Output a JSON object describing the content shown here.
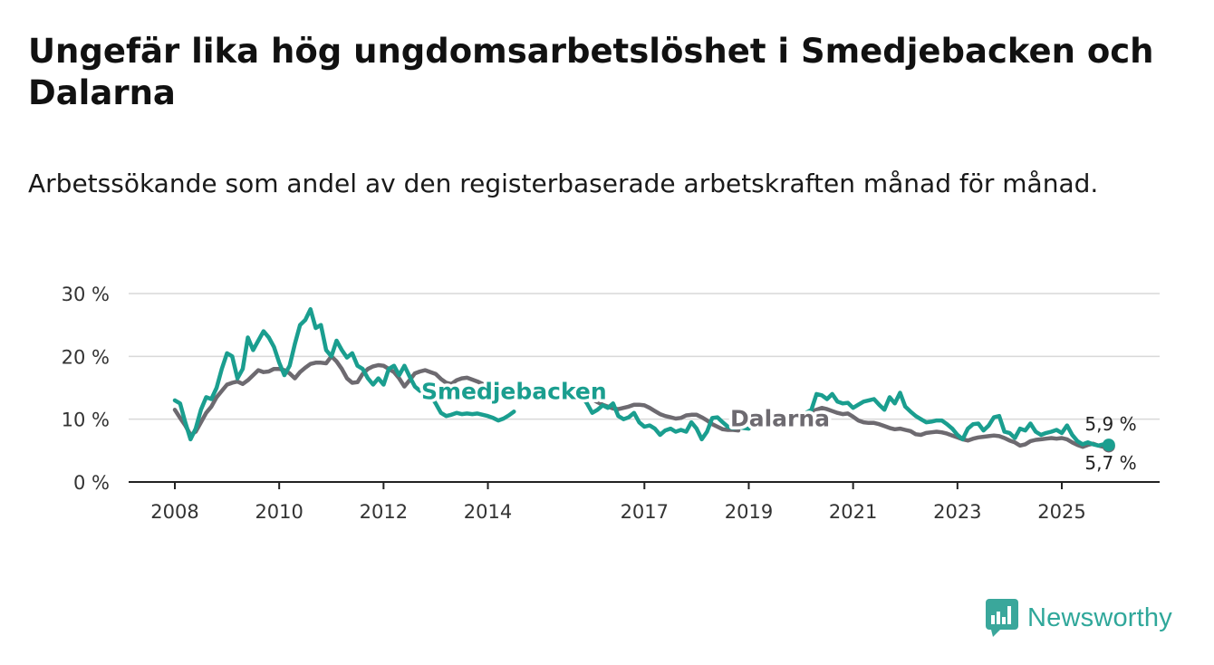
{
  "title": "Ungefär lika hög ungdomsarbetslöshet i Smedjebacken och Dalarna",
  "subtitle": "Arbetssökande som andel av den registerbaserade arbetskraften månad för månad.",
  "brand": {
    "name": "Newsworthy",
    "icon": "newsworthy-logo-icon",
    "color": "#2fa79a"
  },
  "chart_data": {
    "type": "line",
    "title": "Ungefär lika hög ungdomsarbetslöshet i Smedjebacken och Dalarna",
    "xlabel": "",
    "ylabel": "",
    "ylim": [
      0,
      30
    ],
    "xlim": [
      2008.0,
      2026.8
    ],
    "grid": true,
    "x_ticks": [
      2008,
      2010,
      2012,
      2014,
      2017,
      2019,
      2021,
      2023,
      2025
    ],
    "x_tick_labels": [
      "2008",
      "2010",
      "2012",
      "2014",
      "2017",
      "2019",
      "2021",
      "2023",
      "2025"
    ],
    "y_ticks": [
      0,
      10,
      20,
      30
    ],
    "y_tick_labels": [
      "0 %",
      "10 %",
      "20 %",
      "30 %"
    ],
    "series": [
      {
        "name": "Dalarna",
        "color": "#6d6a70",
        "last_value_label": "5,7 %",
        "segments": [
          {
            "x": [
              2008.0,
              2008.1,
              2008.2,
              2008.3,
              2008.4,
              2008.5,
              2008.6,
              2008.7,
              2008.8,
              2008.9,
              2009.0,
              2009.1,
              2009.2,
              2009.3,
              2009.4,
              2009.5,
              2009.6,
              2009.7,
              2009.8,
              2009.9,
              2010.0,
              2010.1,
              2010.2,
              2010.3,
              2010.4,
              2010.5,
              2010.6,
              2010.7,
              2010.8,
              2010.9,
              2011.0,
              2011.1,
              2011.2,
              2011.3,
              2011.4,
              2011.5,
              2011.6,
              2011.7,
              2011.8,
              2011.9,
              2012.0,
              2012.1,
              2012.2,
              2012.3,
              2012.4,
              2012.5,
              2012.6,
              2012.7,
              2012.8,
              2012.9,
              2013.0,
              2013.1,
              2013.2,
              2013.3,
              2013.4,
              2013.5,
              2013.6,
              2013.7,
              2013.8,
              2013.9,
              2014.0,
              2014.1
            ],
            "y": [
              11.5,
              10.2,
              9.0,
              7.5,
              8.0,
              9.5,
              11.0,
              12.0,
              13.5,
              14.5,
              15.5,
              15.8,
              16.0,
              15.6,
              16.2,
              17.0,
              17.8,
              17.5,
              17.6,
              18.0,
              18.0,
              17.8,
              17.3,
              16.5,
              17.5,
              18.2,
              18.8,
              19.0,
              19.0,
              18.9,
              20.0,
              19.2,
              18.0,
              16.5,
              15.8,
              15.9,
              17.2,
              18.0,
              18.4,
              18.6,
              18.5,
              18.0,
              17.5,
              16.5,
              15.2,
              16.2,
              17.3,
              17.6,
              17.8,
              17.5,
              17.2,
              16.4,
              15.8,
              15.6,
              16.2,
              16.5,
              16.6,
              16.3,
              16.0,
              15.6,
              15.2,
              14.9
            ]
          },
          {
            "x": [
              2015.6,
              2015.7,
              2015.8,
              2015.9,
              2016.0,
              2016.1,
              2016.2,
              2016.3,
              2016.4,
              2016.5,
              2016.6,
              2016.7,
              2016.8,
              2016.9,
              2017.0,
              2017.1,
              2017.2,
              2017.3,
              2017.4,
              2017.5,
              2017.6,
              2017.7,
              2017.8,
              2017.9,
              2018.0,
              2018.1,
              2018.2,
              2018.3,
              2018.4,
              2018.5,
              2018.6,
              2018.7,
              2018.8
            ],
            "y": [
              14.5,
              14.2,
              14.0,
              13.5,
              13.2,
              12.7,
              12.3,
              12.0,
              11.7,
              11.6,
              11.8,
              12.0,
              12.3,
              12.3,
              12.2,
              11.8,
              11.3,
              10.8,
              10.5,
              10.3,
              10.1,
              10.2,
              10.6,
              10.7,
              10.7,
              10.3,
              9.8,
              9.2,
              8.8,
              8.4,
              8.3,
              8.3,
              8.2
            ]
          },
          {
            "x": [
              2020.1,
              2020.2,
              2020.3,
              2020.4,
              2020.5,
              2020.6,
              2020.7,
              2020.8,
              2020.9,
              2021.0,
              2021.1,
              2021.2,
              2021.3,
              2021.4,
              2021.5,
              2021.6,
              2021.7,
              2021.8,
              2021.9,
              2022.0,
              2022.1,
              2022.2,
              2022.3,
              2022.4,
              2022.5,
              2022.6,
              2022.7,
              2022.8,
              2022.9,
              2023.0,
              2023.1,
              2023.2,
              2023.3,
              2023.4,
              2023.5,
              2023.6,
              2023.7,
              2023.8,
              2023.9,
              2024.0,
              2024.1,
              2024.2,
              2024.3,
              2024.4,
              2024.5,
              2024.6,
              2024.7,
              2024.8,
              2024.9,
              2025.0,
              2025.1,
              2025.2,
              2025.3,
              2025.4,
              2025.5,
              2025.6,
              2025.7,
              2025.8,
              2025.9
            ],
            "y": [
              11.0,
              11.2,
              11.5,
              11.8,
              11.6,
              11.3,
              11.0,
              10.8,
              10.9,
              10.4,
              9.8,
              9.5,
              9.4,
              9.4,
              9.2,
              8.9,
              8.6,
              8.4,
              8.5,
              8.3,
              8.1,
              7.6,
              7.5,
              7.8,
              7.9,
              8.0,
              7.9,
              7.7,
              7.4,
              7.1,
              6.8,
              6.6,
              6.9,
              7.1,
              7.2,
              7.3,
              7.4,
              7.3,
              7.0,
              6.6,
              6.3,
              5.8,
              6.0,
              6.5,
              6.7,
              6.8,
              6.9,
              7.0,
              6.9,
              7.0,
              6.8,
              6.3,
              5.9,
              5.6,
              5.9,
              6.1,
              5.8,
              5.6,
              5.7
            ]
          }
        ]
      },
      {
        "name": "Smedjebacken",
        "color": "#1a9e8f",
        "last_value_label": "5,9 %",
        "segments": [
          {
            "x": [
              2008.0,
              2008.1,
              2008.2,
              2008.3,
              2008.4,
              2008.5,
              2008.6,
              2008.7,
              2008.8,
              2008.9,
              2009.0,
              2009.1,
              2009.2,
              2009.3,
              2009.4,
              2009.5,
              2009.6,
              2009.7,
              2009.8,
              2009.9,
              2010.0,
              2010.1,
              2010.2,
              2010.3,
              2010.4,
              2010.5,
              2010.6,
              2010.7,
              2010.8,
              2010.9,
              2011.0,
              2011.1,
              2011.2,
              2011.3,
              2011.4,
              2011.5,
              2011.6,
              2011.7,
              2011.8,
              2011.9,
              2012.0,
              2012.1,
              2012.2,
              2012.3,
              2012.4,
              2012.5,
              2012.6,
              2012.7,
              2012.8,
              2012.9,
              2013.0,
              2013.1,
              2013.2,
              2013.3,
              2013.4,
              2013.5,
              2013.6,
              2013.7,
              2013.8,
              2013.9,
              2014.0,
              2014.1,
              2014.2,
              2014.3,
              2014.4,
              2014.5
            ],
            "y": [
              13.0,
              12.5,
              9.5,
              6.8,
              8.5,
              11.5,
              13.5,
              13.2,
              15.0,
              18.0,
              20.5,
              20.0,
              16.5,
              18.0,
              23.0,
              21.0,
              22.5,
              24.0,
              23.0,
              21.5,
              19.0,
              17.0,
              18.5,
              22.0,
              25.0,
              25.8,
              27.5,
              24.5,
              25.0,
              21.0,
              20.0,
              22.5,
              21.0,
              19.8,
              20.5,
              18.5,
              18.0,
              16.5,
              15.5,
              16.5,
              15.5,
              18.0,
              18.5,
              17.0,
              18.5,
              16.8,
              15.2,
              14.5,
              14.6,
              13.8,
              12.5,
              11.0,
              10.5,
              10.7,
              11.0,
              10.8,
              10.9,
              10.8,
              10.9,
              10.7,
              10.5,
              10.2,
              9.8,
              10.1,
              10.6,
              11.2
            ]
          },
          {
            "x": [
              2015.6,
              2015.7,
              2015.8,
              2015.9,
              2016.0,
              2016.1,
              2016.2,
              2016.3,
              2016.4,
              2016.5,
              2016.6,
              2016.7,
              2016.8,
              2016.9,
              2017.0,
              2017.1,
              2017.2,
              2017.3,
              2017.4,
              2017.5,
              2017.6,
              2017.7,
              2017.8,
              2017.9,
              2018.0,
              2018.1,
              2018.2,
              2018.3,
              2018.4,
              2018.5,
              2018.6,
              2018.7,
              2018.8,
              2018.9,
              2019.0
            ],
            "y": [
              14.5,
              14.3,
              13.6,
              12.5,
              11.0,
              11.5,
              12.2,
              11.8,
              12.5,
              10.5,
              10.0,
              10.3,
              11.0,
              9.5,
              8.8,
              9.0,
              8.5,
              7.5,
              8.2,
              8.5,
              8.0,
              8.3,
              8.0,
              9.5,
              8.5,
              6.8,
              8.0,
              10.2,
              10.3,
              9.5,
              8.8,
              8.6,
              8.7,
              8.6,
              8.5
            ]
          },
          {
            "x": [
              2020.1,
              2020.2,
              2020.3,
              2020.4,
              2020.5,
              2020.6,
              2020.7,
              2020.8,
              2020.9,
              2021.0,
              2021.1,
              2021.2,
              2021.3,
              2021.4,
              2021.5,
              2021.6,
              2021.7,
              2021.8,
              2021.9,
              2022.0,
              2022.1,
              2022.2,
              2022.3,
              2022.4,
              2022.5,
              2022.6,
              2022.7,
              2022.8,
              2022.9,
              2023.0,
              2023.1,
              2023.2,
              2023.3,
              2023.4,
              2023.5,
              2023.6,
              2023.7,
              2023.8,
              2023.9,
              2024.0,
              2024.1,
              2024.2,
              2024.3,
              2024.4,
              2024.5,
              2024.6,
              2024.7,
              2024.8,
              2024.9,
              2025.0,
              2025.1,
              2025.2,
              2025.3,
              2025.4,
              2025.5,
              2025.6,
              2025.7,
              2025.8,
              2025.9
            ],
            "y": [
              11.0,
              11.5,
              14.0,
              13.8,
              13.2,
              14.0,
              12.8,
              12.5,
              12.6,
              11.8,
              12.3,
              12.8,
              13.0,
              13.2,
              12.3,
              11.5,
              13.5,
              12.5,
              14.2,
              12.0,
              11.2,
              10.5,
              10.0,
              9.5,
              9.6,
              9.8,
              9.8,
              9.2,
              8.5,
              7.5,
              6.8,
              8.5,
              9.2,
              9.3,
              8.2,
              9.0,
              10.3,
              10.5,
              8.0,
              7.8,
              7.0,
              8.5,
              8.2,
              9.3,
              8.0,
              7.5,
              7.8,
              8.0,
              8.3,
              7.8,
              9.0,
              7.5,
              6.5,
              6.0,
              6.3,
              6.0,
              5.8,
              6.0,
              5.9
            ]
          }
        ]
      }
    ],
    "annotations": [
      {
        "text": "Smedjebacken",
        "series": "Smedjebacken",
        "x": 2014.5,
        "y": 13.2
      },
      {
        "text": "Dalarna",
        "series": "Dalarna",
        "x": 2019.6,
        "y": 8.9
      }
    ]
  }
}
